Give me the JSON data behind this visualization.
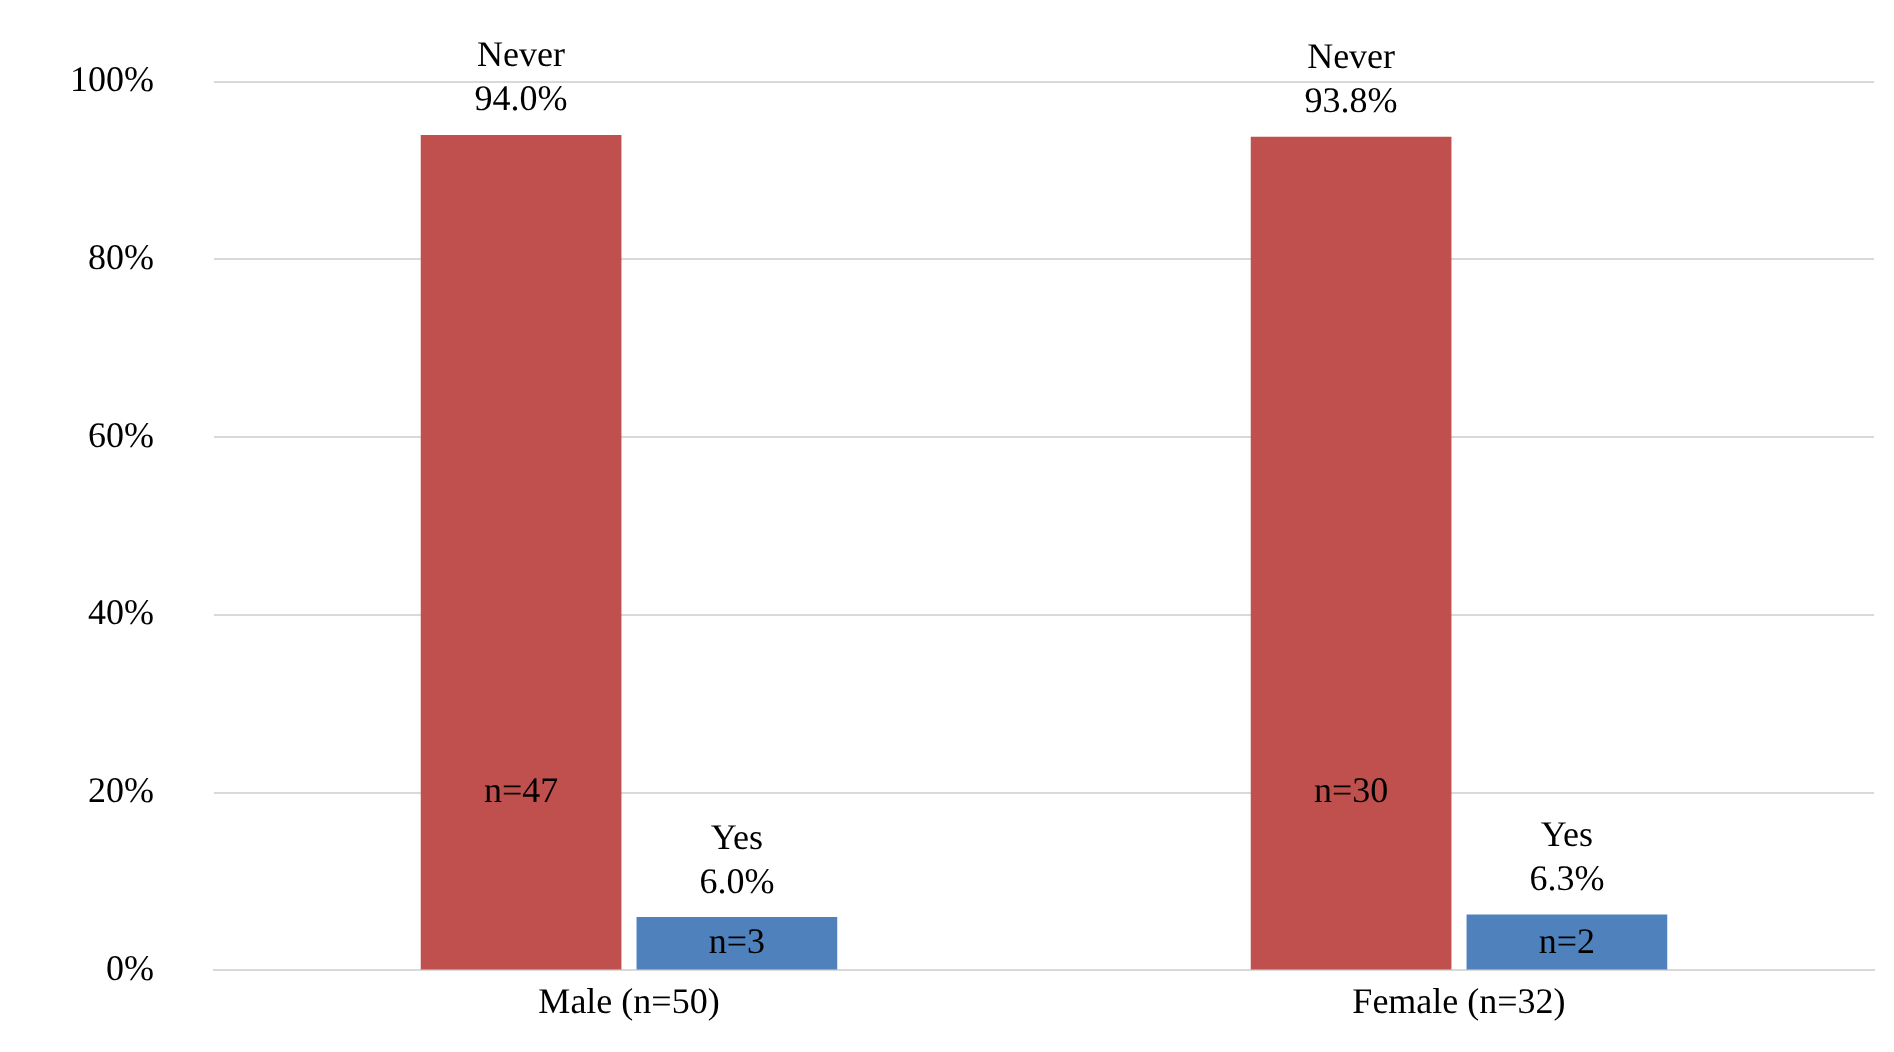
{
  "chart_data": {
    "type": "bar",
    "categories": [
      "Male (n=50)",
      "Female (n=32)"
    ],
    "series": [
      {
        "name": "Never",
        "color": "#c0504d",
        "values": [
          94.0,
          93.8
        ],
        "value_labels": [
          "94.0%",
          "93.8%"
        ]
      },
      {
        "name": "Yes",
        "color": "#4f81bd",
        "values": [
          6.0,
          6.3
        ],
        "value_labels": [
          "6.0%",
          "6.3%"
        ]
      }
    ],
    "ylim": [
      0,
      100
    ],
    "yticks": [
      {
        "value": 0,
        "label": "0%"
      },
      {
        "value": 20,
        "label": "20%"
      },
      {
        "value": 40,
        "label": "40%"
      },
      {
        "value": 60,
        "label": "60%"
      },
      {
        "value": 80,
        "label": "80%"
      },
      {
        "value": 100,
        "label": "100%"
      }
    ],
    "grid": "y",
    "legend": false,
    "annotations": [
      {
        "text": "n=47",
        "x": "Male (n=50)",
        "y": 20
      },
      {
        "text": "n=3",
        "x": "Male (n=50)",
        "y": 3
      },
      {
        "text": "n=30",
        "x": "Female (n=32)",
        "y": 20
      },
      {
        "text": "n=2",
        "x": "Female (n=32)",
        "y": 3
      }
    ]
  }
}
